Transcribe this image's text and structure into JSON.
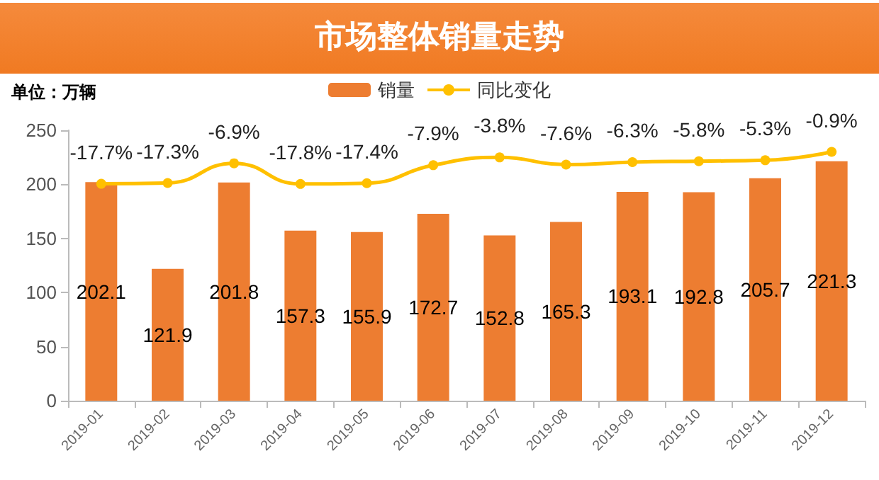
{
  "chart_data": {
    "type": "bar",
    "title": "市场整体销量走势",
    "annotations": [
      "单位：万辆"
    ],
    "categories": [
      "2019-01",
      "2019-02",
      "2019-03",
      "2019-04",
      "2019-05",
      "2019-06",
      "2019-07",
      "2019-08",
      "2019-09",
      "2019-10",
      "2019-11",
      "2019-12"
    ],
    "series": [
      {
        "name": "销量",
        "color": "#ed7d31",
        "values": [
          202.1,
          121.9,
          201.8,
          157.3,
          155.9,
          172.7,
          152.8,
          165.3,
          193.1,
          192.8,
          205.7,
          221.3
        ],
        "value_labels": [
          "202.1",
          "121.9",
          "201.8",
          "157.3",
          "155.9",
          "172.7",
          "152.8",
          "165.3",
          "193.1",
          "192.8",
          "205.7",
          "221.3"
        ]
      },
      {
        "name": "同比变化",
        "type": "line",
        "axis": "y2",
        "color": "#ffc000",
        "values": [
          -17.7,
          -17.3,
          -6.9,
          -17.8,
          -17.4,
          -7.9,
          -3.8,
          -7.6,
          -6.3,
          -5.8,
          -5.3,
          -0.9
        ],
        "value_labels": [
          "-17.7%",
          "-17.3%",
          "-6.9%",
          "-17.8%",
          "-17.4%",
          "-7.9%",
          "-3.8%",
          "-7.6%",
          "-6.3%",
          "-5.8%",
          "-5.3%",
          "-0.9%"
        ]
      }
    ],
    "ylim": [
      0,
      250
    ],
    "yticks": [
      0,
      50,
      100,
      150,
      200,
      250
    ],
    "y2lim": [
      -132,
      10.5
    ],
    "legend": "top",
    "grid": false,
    "marker": "circle",
    "line_style": "solid"
  }
}
